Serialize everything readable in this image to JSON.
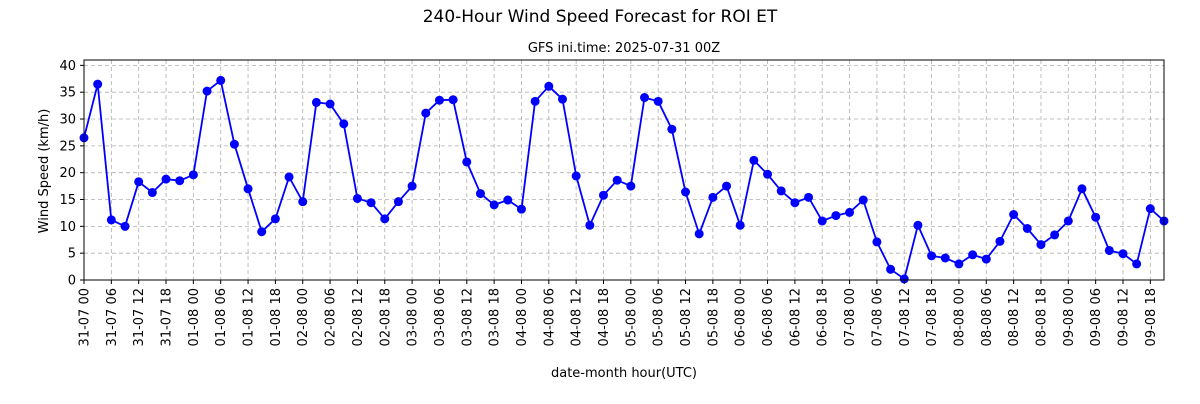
{
  "chart_data": {
    "type": "line",
    "title": "240-Hour Wind Speed Forecast for ROI ET",
    "subtitle": "GFS ini.time: 2025-07-31 00Z",
    "xlabel": "date-month hour(UTC)",
    "ylabel": "Wind Speed (km/h)",
    "ylim": [
      0,
      41
    ],
    "yticks": [
      0,
      5,
      10,
      15,
      20,
      25,
      30,
      35,
      40
    ],
    "grid": true,
    "x_tick_labels": [
      "31-07 00",
      "31-07 06",
      "31-07 12",
      "31-07 18",
      "01-08 00",
      "01-08 06",
      "01-08 12",
      "01-08 18",
      "02-08 00",
      "02-08 06",
      "02-08 12",
      "02-08 18",
      "03-08 00",
      "03-08 06",
      "03-08 12",
      "03-08 18",
      "04-08 00",
      "04-08 06",
      "04-08 12",
      "04-08 18",
      "05-08 00",
      "05-08 06",
      "05-08 12",
      "05-08 18",
      "06-08 00",
      "06-08 06",
      "06-08 12",
      "06-08 18",
      "07-08 00",
      "07-08 06",
      "07-08 12",
      "07-08 18",
      "08-08 00",
      "08-08 06",
      "08-08 12",
      "08-08 18",
      "09-08 00",
      "09-08 06",
      "09-08 12",
      "09-08 18"
    ],
    "x_hours_step": 3,
    "series": [
      {
        "color": "#0000ff",
        "marker": "circle",
        "values": [
          26.5,
          36.5,
          11.2,
          10.0,
          18.3,
          16.3,
          18.8,
          18.5,
          19.6,
          35.2,
          37.2,
          25.3,
          17.0,
          9.0,
          11.4,
          19.2,
          14.6,
          33.1,
          32.8,
          29.1,
          15.2,
          14.4,
          11.4,
          14.6,
          17.5,
          31.1,
          33.5,
          33.6,
          22.0,
          16.1,
          14.0,
          14.9,
          13.2,
          33.3,
          36.1,
          33.7,
          19.4,
          10.2,
          15.8,
          18.6,
          17.5,
          34.0,
          33.3,
          28.1,
          16.4,
          8.6,
          15.4,
          17.5,
          10.2,
          22.3,
          19.7,
          16.6,
          14.4,
          15.4,
          11.0,
          12.0,
          12.6,
          14.9,
          7.1,
          2.0,
          0.2,
          10.2,
          4.5,
          4.1,
          3.0,
          4.7,
          3.9,
          7.2,
          12.2,
          9.6,
          6.6,
          8.4,
          11.0,
          17.0,
          11.7,
          5.5,
          4.9,
          3.0,
          13.3,
          11.0
        ]
      }
    ]
  }
}
